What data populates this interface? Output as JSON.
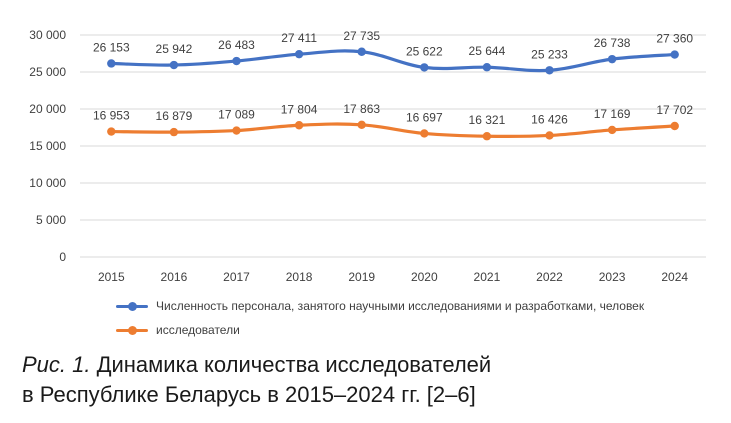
{
  "chart_data": {
    "type": "line",
    "categories": [
      "2015",
      "2016",
      "2017",
      "2018",
      "2019",
      "2020",
      "2021",
      "2022",
      "2023",
      "2024"
    ],
    "ylim": [
      0,
      30000
    ],
    "yticks": [
      0,
      5000,
      10000,
      15000,
      20000,
      25000,
      30000
    ],
    "ytick_labels": [
      "0",
      "5 000",
      "10 000",
      "15 000",
      "20 000",
      "25 000",
      "30 000"
    ],
    "grid": "horizontal",
    "legend_position": "bottom",
    "series": [
      {
        "name": "Численность персонала, занятого научными исследованиями и разработками, человек",
        "color": "#4472C4",
        "values": [
          26153,
          25942,
          26483,
          27411,
          27735,
          25622,
          25644,
          25233,
          26738,
          27360
        ],
        "labels": [
          "26 153",
          "25 942",
          "26 483",
          "27 411",
          "27 735",
          "25 622",
          "25 644",
          "25 233",
          "26 738",
          "27 360"
        ]
      },
      {
        "name": "исследователи",
        "color": "#ED7D31",
        "values": [
          16953,
          16879,
          17089,
          17804,
          17863,
          16697,
          16321,
          16426,
          17169,
          17702
        ],
        "labels": [
          "16 953",
          "16 879",
          "17 089",
          "17 804",
          "17 863",
          "16 697",
          "16 321",
          "16 426",
          "17 169",
          "17 702"
        ]
      }
    ]
  },
  "caption": {
    "prefix": "Рис. 1.",
    "line1": " Динамика количества исследователей",
    "line2": "в Республике Беларусь в 2015–2024 гг. [2–6]"
  }
}
